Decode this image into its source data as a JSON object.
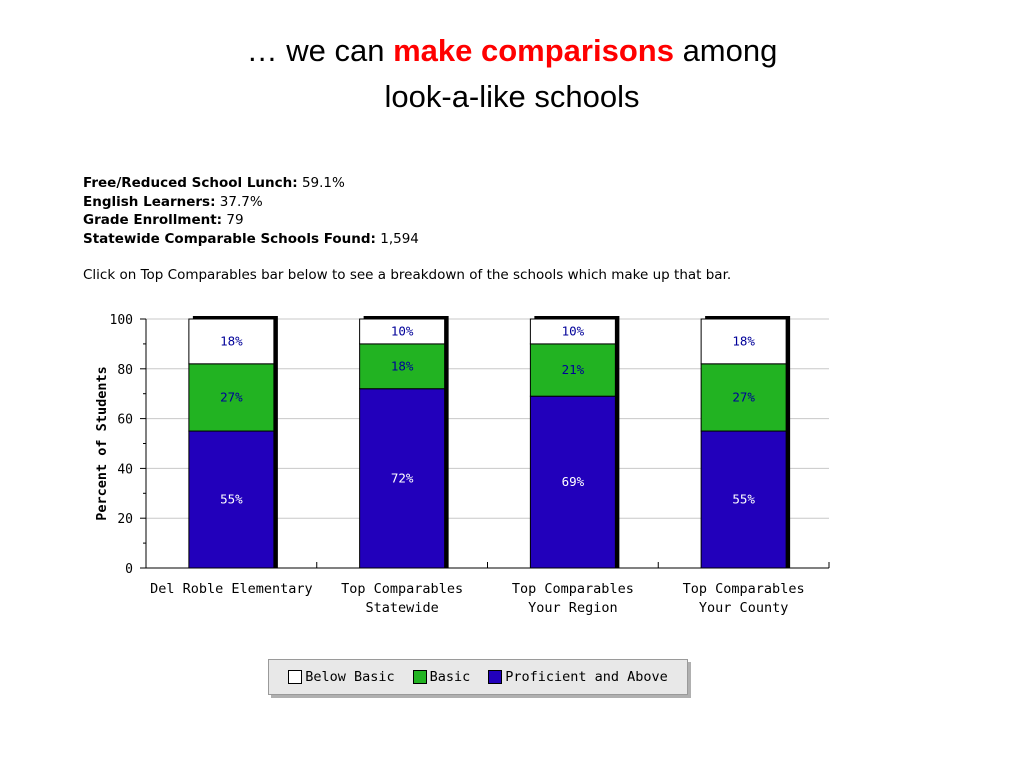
{
  "slide": {
    "title_prefix": "… we can ",
    "title_emphasis": "make comparisons",
    "title_suffix": " among",
    "title_line2": "look-a-like schools"
  },
  "stats": [
    {
      "label": "Free/Reduced School Lunch:",
      "value": "59.1%"
    },
    {
      "label": "English Learners:",
      "value": "37.7%"
    },
    {
      "label": "Grade Enrollment:",
      "value": "79"
    },
    {
      "label": "Statewide Comparable Schools Found:",
      "value": "1,594"
    }
  ],
  "instruction": "Click on Top Comparables bar below to see a breakdown of the schools which make up that bar.",
  "colors": {
    "below_basic": "#ffffff",
    "basic": "#22b322",
    "proficient": "#2200bb",
    "label_blue": "#000099",
    "label_white": "#ffffff",
    "emphasis": "#ff0000"
  },
  "chart_data": {
    "type": "bar",
    "stacked": true,
    "categories": [
      [
        "Del Roble Elementary"
      ],
      [
        "Top Comparables",
        "Statewide"
      ],
      [
        "Top Comparables",
        "Your Region"
      ],
      [
        "Top Comparables",
        "Your County"
      ]
    ],
    "series": [
      {
        "name": "Proficient and Above",
        "values": [
          55,
          72,
          69,
          55
        ],
        "labels": [
          "55%",
          "72%",
          "69%",
          "55%"
        ]
      },
      {
        "name": "Basic",
        "values": [
          27,
          18,
          21,
          27
        ],
        "labels": [
          "27%",
          "18%",
          "21%",
          "27%"
        ]
      },
      {
        "name": "Below Basic",
        "values": [
          18,
          10,
          10,
          18
        ],
        "labels": [
          "18%",
          "10%",
          "10%",
          "18%"
        ]
      }
    ],
    "ylabel": "Percent of Students",
    "ylim": [
      0,
      100
    ],
    "yticks": [
      0,
      20,
      40,
      60,
      80,
      100
    ],
    "grid": true
  },
  "legend": {
    "items": [
      {
        "name": "Below Basic",
        "color": "#ffffff"
      },
      {
        "name": "Basic",
        "color": "#22b322"
      },
      {
        "name": "Proficient and Above",
        "color": "#2200bb"
      }
    ]
  }
}
